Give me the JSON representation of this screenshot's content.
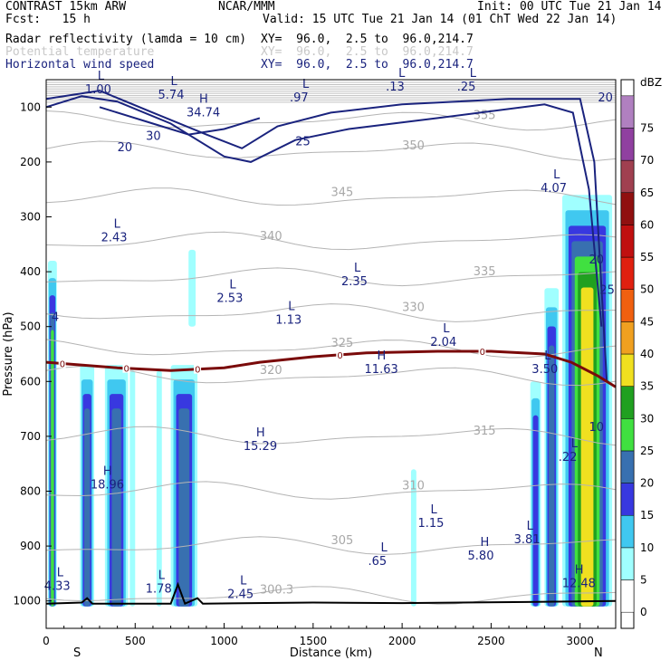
{
  "header": {
    "model": "CONTRAST 15km ARW",
    "fcst": "Fcst:   15 h",
    "org": "NCAR/MMM",
    "init": "Init: 00 UTC Tue 21 Jan 14",
    "valid": "Valid: 15 UTC Tue 21 Jan 14 (01 ChT Wed 22 Jan 14)",
    "fields": [
      {
        "name": "Radar reflectivity (lamda = 10 cm)",
        "xy": "XY=  96.0,  2.5 to  96.0,214.7",
        "color": "#000000"
      },
      {
        "name": "Potential temperature",
        "xy": "XY=  96.0,  2.5 to  96.0,214.7",
        "color": "#c8c8c8"
      },
      {
        "name": "Horizontal wind speed",
        "xy": "XY=  96.0,  2.5 to  96.0,214.7",
        "color": "#1a237e"
      }
    ]
  },
  "chart_data": {
    "type": "heatmap",
    "xlabel": "Distance (km)",
    "ylabel": "Pressure (hPa)",
    "x_ticks": [
      "0",
      "500",
      "1000",
      "1500",
      "2000",
      "2500",
      "3000"
    ],
    "x_values": [
      0,
      500,
      1000,
      1500,
      2000,
      2500,
      3000
    ],
    "y_ticks": [
      "100",
      "200",
      "300",
      "400",
      "500",
      "600",
      "700",
      "800",
      "900",
      "1000"
    ],
    "y_values": [
      100,
      200,
      300,
      400,
      500,
      600,
      700,
      800,
      900,
      1000
    ],
    "xlim": [
      0,
      3200
    ],
    "ylim": [
      1050,
      50
    ],
    "x_end_labels": {
      "left": "S",
      "right": "N"
    },
    "colorbar": {
      "unit": "dBZ",
      "levels": [
        {
          "label": "0",
          "color": "#ffffff"
        },
        {
          "label": "5",
          "color": "#a0ffff"
        },
        {
          "label": "10",
          "color": "#40c8f0"
        },
        {
          "label": "15",
          "color": "#3838e0"
        },
        {
          "label": "20",
          "color": "#3870b0"
        },
        {
          "label": "25",
          "color": "#40e040"
        },
        {
          "label": "30",
          "color": "#20a020"
        },
        {
          "label": "35",
          "color": "#f0e020"
        },
        {
          "label": "40",
          "color": "#f0a020"
        },
        {
          "label": "45",
          "color": "#f06010"
        },
        {
          "label": "50",
          "color": "#e02010"
        },
        {
          "label": "55",
          "color": "#c01010"
        },
        {
          "label": "60",
          "color": "#901010"
        },
        {
          "label": "65",
          "color": "#a04050"
        },
        {
          "label": "70",
          "color": "#9040a0"
        },
        {
          "label": "75",
          "color": "#b080c0"
        }
      ]
    },
    "reflectivity_columns": [
      {
        "x0": 10,
        "x1": 60,
        "p_top": 380,
        "p_bot": 1010,
        "max_dbz": 25
      },
      {
        "x0": 190,
        "x1": 270,
        "p_top": 570,
        "p_bot": 1010,
        "max_dbz": 20
      },
      {
        "x0": 330,
        "x1": 460,
        "p_top": 570,
        "p_bot": 1010,
        "max_dbz": 20
      },
      {
        "x0": 470,
        "x1": 500,
        "p_top": 580,
        "p_bot": 1010,
        "max_dbz": 5
      },
      {
        "x0": 620,
        "x1": 650,
        "p_top": 580,
        "p_bot": 1010,
        "max_dbz": 5
      },
      {
        "x0": 700,
        "x1": 850,
        "p_top": 570,
        "p_bot": 1010,
        "max_dbz": 20
      },
      {
        "x0": 800,
        "x1": 840,
        "p_top": 360,
        "p_bot": 500,
        "max_dbz": 5
      },
      {
        "x0": 2050,
        "x1": 2080,
        "p_top": 760,
        "p_bot": 1010,
        "max_dbz": 5
      },
      {
        "x0": 2720,
        "x1": 2780,
        "p_top": 600,
        "p_bot": 1010,
        "max_dbz": 15
      },
      {
        "x0": 2800,
        "x1": 2880,
        "p_top": 430,
        "p_bot": 1010,
        "max_dbz": 20
      },
      {
        "x0": 2900,
        "x1": 3180,
        "p_top": 260,
        "p_bot": 1010,
        "max_dbz": 35
      }
    ],
    "freezing_level_label": "0",
    "freezing_level": [
      [
        0,
        565
      ],
      [
        400,
        575
      ],
      [
        700,
        580
      ],
      [
        1000,
        575
      ],
      [
        1200,
        565
      ],
      [
        1500,
        555
      ],
      [
        1800,
        548
      ],
      [
        2200,
        545
      ],
      [
        2500,
        545
      ],
      [
        2800,
        550
      ],
      [
        2950,
        565
      ],
      [
        3100,
        590
      ],
      [
        3200,
        610
      ]
    ],
    "theta_levels": [
      "300.3",
      "305",
      "310",
      "315",
      "320",
      "325",
      "330",
      "335",
      "340",
      "345",
      "350",
      "355"
    ],
    "wind_levels": [
      "20",
      "25",
      "30"
    ],
    "extrema": [
      {
        "type": "L",
        "value": "1.00",
        "x": 310,
        "p": 60
      },
      {
        "type": "L",
        "value": "5.74",
        "x": 720,
        "p": 70
      },
      {
        "type": "H",
        "value": "34.74",
        "x": 880,
        "p": 102
      },
      {
        "type": "L",
        "value": ".97",
        "x": 1460,
        "p": 75
      },
      {
        "type": "L",
        "value": ".13",
        "x": 2000,
        "p": 55
      },
      {
        "type": "L",
        "value": ".25",
        "x": 2400,
        "p": 55
      },
      {
        "type": "L",
        "value": "4.07",
        "x": 2870,
        "p": 240
      },
      {
        "type": "L",
        "value": "2.43",
        "x": 400,
        "p": 330
      },
      {
        "type": "L",
        "value": "2.35",
        "x": 1750,
        "p": 410
      },
      {
        "type": "L",
        "value": "2.53",
        "x": 1050,
        "p": 440
      },
      {
        "type": "L",
        "value": "1.13",
        "x": 1380,
        "p": 480
      },
      {
        "type": "L",
        "value": "2.04",
        "x": 2250,
        "p": 520
      },
      {
        "type": "H",
        "value": "11.63",
        "x": 1880,
        "p": 570
      },
      {
        "type": "L",
        "value": "3.50",
        "x": 2820,
        "p": 570
      },
      {
        "type": "H",
        "value": "15.29",
        "x": 1200,
        "p": 710
      },
      {
        "type": "H",
        "value": "18.96",
        "x": 340,
        "p": 780
      },
      {
        "type": "L",
        "value": ".22",
        "x": 2970,
        "p": 730
      },
      {
        "type": "L",
        "value": "1.15",
        "x": 2180,
        "p": 850
      },
      {
        "type": "L",
        "value": "3.81",
        "x": 2720,
        "p": 880
      },
      {
        "type": "L",
        "value": ".65",
        "x": 1900,
        "p": 920
      },
      {
        "type": "H",
        "value": "5.80",
        "x": 2460,
        "p": 910
      },
      {
        "type": "H",
        "value": "12.48",
        "x": 2990,
        "p": 960
      },
      {
        "type": "L",
        "value": "4.33",
        "x": 80,
        "p": 965
      },
      {
        "type": "L",
        "value": "1.78",
        "x": 650,
        "p": 970
      },
      {
        "type": "L",
        "value": "2.45",
        "x": 1110,
        "p": 980
      }
    ],
    "grid": false
  }
}
